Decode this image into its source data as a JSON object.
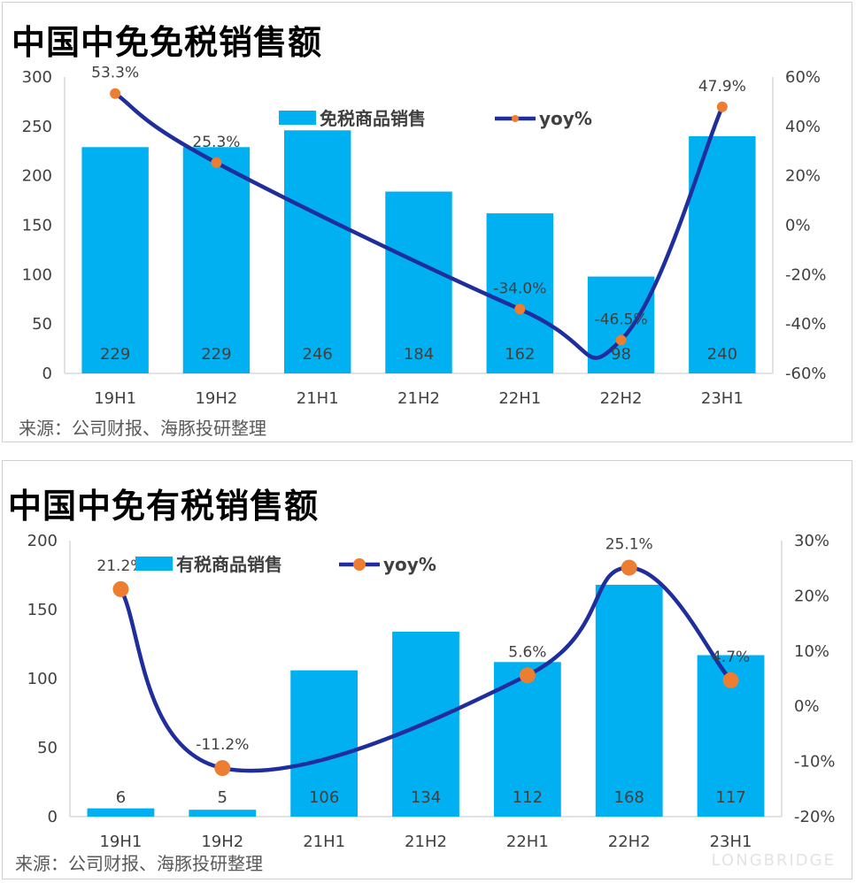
{
  "charts": [
    {
      "title": "中国中免免税销售额",
      "source": "来源：公司财报、海豚投研整理",
      "legend": {
        "bar": "免税商品销售",
        "line": "yoy%"
      }
    },
    {
      "title": "中国中免有税销售额",
      "source": "来源：公司财报、海豚投研整理",
      "legend": {
        "bar": "有税商品销售",
        "line": "yoy%"
      }
    }
  ],
  "watermark": "LONGBRIDGE",
  "colors": {
    "bar": "#00b0f0",
    "line": "#1f2e9c",
    "marker": "#ed7d31",
    "axis": "#d9d9d9"
  },
  "chart_data": [
    {
      "type": "bar",
      "title": "中国中免免税销售额",
      "categories": [
        "19H1",
        "19H2",
        "21H1",
        "21H2",
        "22H1",
        "22H2",
        "23H1"
      ],
      "series": [
        {
          "name": "免税商品销售",
          "type": "bar",
          "axis": "left",
          "values": [
            229,
            229,
            246,
            184,
            162,
            98,
            240
          ],
          "labels": [
            "229",
            "229",
            "246",
            "184",
            "162",
            "98",
            "240"
          ]
        },
        {
          "name": "yoy%",
          "type": "line",
          "axis": "right",
          "points": [
            {
              "category": "19H1",
              "value": 53.3,
              "label": "53.3%"
            },
            {
              "category": "19H2",
              "value": 25.3,
              "label": "25.3%"
            },
            {
              "category": "22H1",
              "value": -34.0,
              "label": "-34.0%"
            },
            {
              "category": "22H2",
              "value": -46.5,
              "label": "-46.5%"
            },
            {
              "category": "23H1",
              "value": 47.9,
              "label": "47.9%"
            }
          ]
        }
      ],
      "ylim": [
        0,
        300
      ],
      "yticks": [
        "0",
        "50",
        "100",
        "150",
        "200",
        "250",
        "300"
      ],
      "y2lim": [
        -60,
        60
      ],
      "y2ticks": [
        "-60%",
        "-40%",
        "-20%",
        "0%",
        "20%",
        "40%",
        "60%"
      ],
      "legend_position": "top-center",
      "grid": false
    },
    {
      "type": "bar",
      "title": "中国中免有税销售额",
      "categories": [
        "19H1",
        "19H2",
        "21H1",
        "21H2",
        "22H1",
        "22H2",
        "23H1"
      ],
      "series": [
        {
          "name": "有税商品销售",
          "type": "bar",
          "axis": "left",
          "values": [
            6,
            5,
            106,
            134,
            112,
            168,
            117
          ],
          "labels": [
            "6",
            "5",
            "106",
            "134",
            "112",
            "168",
            "117"
          ]
        },
        {
          "name": "yoy%",
          "type": "line",
          "axis": "right",
          "points": [
            {
              "category": "19H1",
              "value": 21.2,
              "label": "21.2%"
            },
            {
              "category": "19H2",
              "value": -11.2,
              "label": "-11.2%"
            },
            {
              "category": "22H1",
              "value": 5.6,
              "label": "5.6%"
            },
            {
              "category": "22H2",
              "value": 25.1,
              "label": "25.1%"
            },
            {
              "category": "23H1",
              "value": 4.7,
              "label": "4.7%"
            }
          ]
        }
      ],
      "ylim": [
        0,
        200
      ],
      "yticks": [
        "0",
        "50",
        "100",
        "150",
        "200"
      ],
      "y2lim": [
        -20,
        30
      ],
      "y2ticks": [
        "-20%",
        "-10%",
        "0%",
        "10%",
        "20%",
        "30%"
      ],
      "legend_position": "top-center",
      "grid": false
    }
  ]
}
